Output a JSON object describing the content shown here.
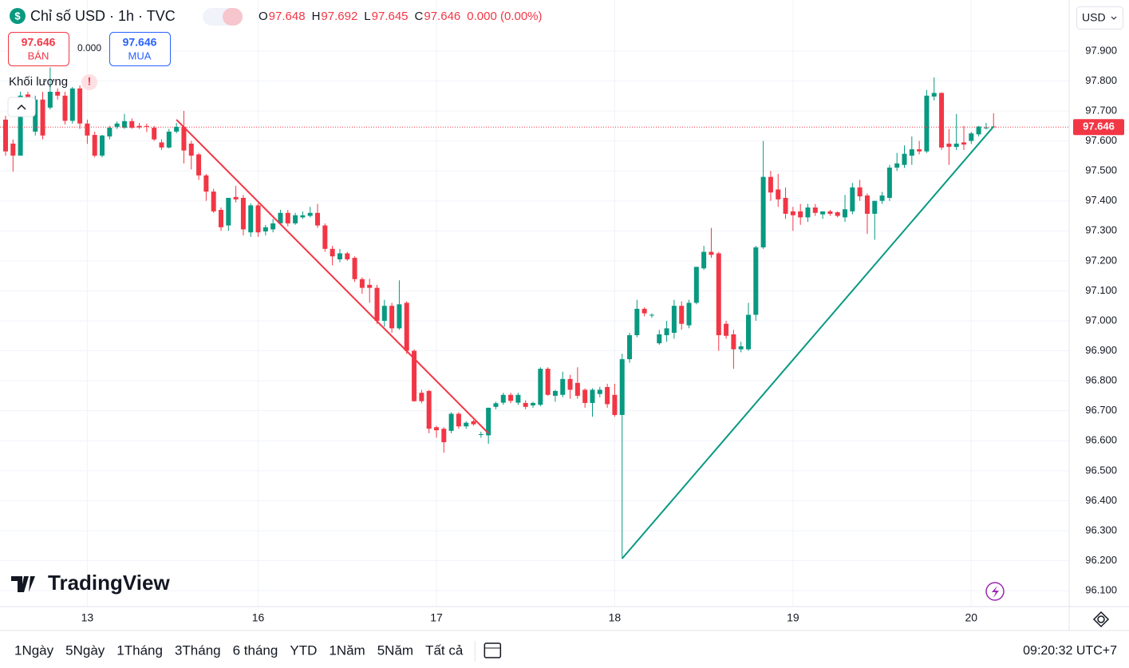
{
  "chart_data": {
    "type": "candlestick",
    "title": "Chỉ số USD · 1h · TVC",
    "legend": [
      {
        "key": "O",
        "value": 97.648
      },
      {
        "key": "H",
        "value": 97.692
      },
      {
        "key": "L",
        "value": 97.645
      },
      {
        "key": "C",
        "value": 97.646
      }
    ],
    "change": "0.000 (0.00%)",
    "sell": {
      "price": 97.646,
      "label": "BÁN"
    },
    "spread": "0.000",
    "buy": {
      "price": 97.646,
      "label": "MUA"
    },
    "volume_label": "Khối lượng",
    "currency": "USD",
    "last_price": 97.646,
    "watermark": "TradingView",
    "up_color": "#089981",
    "down_color": "#f23645",
    "ylim": [
      96.047,
      98.07
    ],
    "yticks": [
      {
        "value": 96.1,
        "label": "96.100"
      },
      {
        "value": 96.2,
        "label": "96.200"
      },
      {
        "value": 96.3,
        "label": "96.300"
      },
      {
        "value": 96.4,
        "label": "96.400"
      },
      {
        "value": 96.5,
        "label": "96.500"
      },
      {
        "value": 96.6,
        "label": "96.600"
      },
      {
        "value": 96.7,
        "label": "96.700"
      },
      {
        "value": 96.8,
        "label": "96.800"
      },
      {
        "value": 96.9,
        "label": "96.900"
      },
      {
        "value": 97.0,
        "label": "97.000"
      },
      {
        "value": 97.1,
        "label": "97.100"
      },
      {
        "value": 97.2,
        "label": "97.200"
      },
      {
        "value": 97.3,
        "label": "97.300"
      },
      {
        "value": 97.4,
        "label": "97.400"
      },
      {
        "value": 97.5,
        "label": "97.500"
      },
      {
        "value": 97.6,
        "label": "97.600"
      },
      {
        "value": 97.7,
        "label": "97.700"
      },
      {
        "value": 97.8,
        "label": "97.800"
      },
      {
        "value": 97.9,
        "label": "97.900"
      }
    ],
    "grid": true,
    "categories": [
      null,
      null,
      null,
      null,
      null,
      null,
      null,
      null,
      null,
      null,
      null,
      "13",
      null,
      null,
      null,
      null,
      null,
      null,
      null,
      null,
      null,
      null,
      null,
      null,
      null,
      null,
      null,
      null,
      null,
      null,
      null,
      null,
      null,
      null,
      "16",
      null,
      null,
      null,
      null,
      null,
      null,
      null,
      null,
      null,
      null,
      null,
      null,
      null,
      null,
      null,
      null,
      null,
      null,
      null,
      null,
      null,
      null,
      null,
      "17",
      null,
      null,
      null,
      null,
      null,
      null,
      null,
      null,
      null,
      null,
      null,
      null,
      null,
      null,
      null,
      null,
      null,
      null,
      null,
      null,
      null,
      null,
      null,
      "18",
      null,
      null,
      null,
      null,
      null,
      null,
      null,
      null,
      null,
      null,
      null,
      null,
      null,
      null,
      null,
      null,
      null,
      null,
      null,
      null,
      null,
      null,
      null,
      "19",
      null,
      null,
      null,
      null,
      null,
      null,
      null,
      null,
      null,
      null,
      null,
      null,
      null,
      null,
      null,
      null,
      null,
      null,
      null,
      null,
      null,
      null,
      null,
      "20",
      null,
      null,
      null
    ],
    "open": [
      97.671,
      97.591,
      97.551,
      97.755,
      97.631,
      97.738,
      97.711,
      97.764,
      97.751,
      97.667,
      97.775,
      97.658,
      97.62,
      97.551,
      97.615,
      97.647,
      97.644,
      97.666,
      97.65,
      97.65,
      97.644,
      97.595,
      97.578,
      97.631,
      97.647,
      97.591,
      97.555,
      97.485,
      97.431,
      97.37,
      97.318,
      97.413,
      97.41,
      97.295,
      97.385,
      97.298,
      97.305,
      97.325,
      97.36,
      97.325,
      97.345,
      97.35,
      97.36,
      97.318,
      97.24,
      97.205,
      97.225,
      97.21,
      97.139,
      97.12,
      97.11,
      97.0,
      97.05,
      96.975,
      97.06,
      96.9,
      96.76,
      96.766,
      96.645,
      96.64,
      96.633,
      96.69,
      96.648,
      96.665,
      96.62,
      96.618,
      96.713,
      96.727,
      96.753,
      96.727,
      96.726,
      96.718,
      96.72,
      96.84,
      96.75,
      96.753,
      96.806,
      96.793,
      96.77,
      96.726,
      96.756,
      96.779,
      96.753,
      96.686,
      96.872,
      96.952,
      97.04,
      97.018,
      96.925,
      96.952,
      96.96,
      97.05,
      96.985,
      97.06,
      97.175,
      97.23,
      97.225,
      96.99,
      96.955,
      96.905,
      96.905,
      97.02,
      97.245,
      97.48,
      97.438,
      97.41,
      97.365,
      97.365,
      97.345,
      97.378,
      97.355,
      97.365,
      97.362,
      97.345,
      97.365,
      97.445,
      97.418,
      97.357,
      97.4,
      97.41,
      97.511,
      97.52,
      97.551,
      97.572,
      97.565,
      97.748,
      97.76,
      97.591,
      97.58,
      97.595,
      97.6,
      97.622,
      97.642,
      97.648
    ],
    "high": [
      97.684,
      97.605,
      97.764,
      97.764,
      97.751,
      97.764,
      97.845,
      97.775,
      97.764,
      97.78,
      97.785,
      97.671,
      97.631,
      97.62,
      97.65,
      97.665,
      97.69,
      97.675,
      97.66,
      97.658,
      97.65,
      97.605,
      97.64,
      97.66,
      97.7,
      97.6,
      97.56,
      97.49,
      97.44,
      97.378,
      97.41,
      97.45,
      97.42,
      97.392,
      97.392,
      97.32,
      97.34,
      97.37,
      97.37,
      97.36,
      97.365,
      97.38,
      97.39,
      97.325,
      97.25,
      97.24,
      97.23,
      97.215,
      97.145,
      97.14,
      97.12,
      97.07,
      97.06,
      97.135,
      97.065,
      96.905,
      96.77,
      96.77,
      96.65,
      96.645,
      96.695,
      96.695,
      96.665,
      96.67,
      96.63,
      96.71,
      96.73,
      96.76,
      96.76,
      96.76,
      96.735,
      96.73,
      96.845,
      96.845,
      96.77,
      96.83,
      96.82,
      96.845,
      96.775,
      96.775,
      96.78,
      96.79,
      96.79,
      96.89,
      96.96,
      97.07,
      97.045,
      97.025,
      96.97,
      97.0,
      97.07,
      97.065,
      97.07,
      97.18,
      97.25,
      97.31,
      97.23,
      97.0,
      96.97,
      96.93,
      97.06,
      97.25,
      97.6,
      97.5,
      97.49,
      97.445,
      97.38,
      97.39,
      97.39,
      97.39,
      97.365,
      97.37,
      97.365,
      97.42,
      97.46,
      97.47,
      97.425,
      97.4,
      97.43,
      97.52,
      97.56,
      97.585,
      97.615,
      97.6,
      97.77,
      97.812,
      97.762,
      97.64,
      97.69,
      97.65,
      97.63,
      97.65,
      97.66,
      97.692
    ],
    "low": [
      97.551,
      97.498,
      97.551,
      97.698,
      97.618,
      97.605,
      97.705,
      97.738,
      97.655,
      97.658,
      97.64,
      97.59,
      97.545,
      97.545,
      97.605,
      97.64,
      97.64,
      97.64,
      97.64,
      97.63,
      97.6,
      97.57,
      97.575,
      97.625,
      97.525,
      97.505,
      97.47,
      97.4,
      97.36,
      97.3,
      97.3,
      97.395,
      97.285,
      97.28,
      97.28,
      97.285,
      97.295,
      97.32,
      97.315,
      97.32,
      97.34,
      97.345,
      97.31,
      97.23,
      97.185,
      97.195,
      97.2,
      97.13,
      97.09,
      97.06,
      96.99,
      96.98,
      96.96,
      96.97,
      96.89,
      96.73,
      96.725,
      96.625,
      96.61,
      96.56,
      96.625,
      96.64,
      96.64,
      96.65,
      96.61,
      96.59,
      96.705,
      96.72,
      96.725,
      96.72,
      96.705,
      96.71,
      96.715,
      96.75,
      96.73,
      96.745,
      96.74,
      96.74,
      96.71,
      96.68,
      96.745,
      96.71,
      96.68,
      96.207,
      96.86,
      96.945,
      97.015,
      97.01,
      96.92,
      96.93,
      96.94,
      96.97,
      96.975,
      97.055,
      97.17,
      97.21,
      96.9,
      96.94,
      96.84,
      96.895,
      96.9,
      97.0,
      97.24,
      97.4,
      97.38,
      97.34,
      97.3,
      97.32,
      97.33,
      97.35,
      97.34,
      97.35,
      97.345,
      97.33,
      97.355,
      97.4,
      97.29,
      97.27,
      97.39,
      97.4,
      97.5,
      97.51,
      97.52,
      97.555,
      97.56,
      97.735,
      97.57,
      97.52,
      97.57,
      97.57,
      97.59,
      97.615,
      97.638,
      97.645
    ],
    "close": [
      97.565,
      97.551,
      97.751,
      97.711,
      97.738,
      97.618,
      97.764,
      97.751,
      97.667,
      97.775,
      97.658,
      97.618,
      97.551,
      97.618,
      97.644,
      97.658,
      97.666,
      97.644,
      97.645,
      97.647,
      97.605,
      97.578,
      97.631,
      97.647,
      97.568,
      97.551,
      97.485,
      97.431,
      97.365,
      97.312,
      97.41,
      97.405,
      97.305,
      97.385,
      97.295,
      97.312,
      97.325,
      97.36,
      97.325,
      97.352,
      97.352,
      97.36,
      97.318,
      97.24,
      97.215,
      97.225,
      97.205,
      97.139,
      97.11,
      97.11,
      97.0,
      97.05,
      96.975,
      97.055,
      96.9,
      96.732,
      96.732,
      96.64,
      96.635,
      96.595,
      96.69,
      96.648,
      96.66,
      96.655,
      96.622,
      96.71,
      96.725,
      96.753,
      96.733,
      96.753,
      96.713,
      96.726,
      96.84,
      96.753,
      96.766,
      96.806,
      96.77,
      96.75,
      96.726,
      96.77,
      96.77,
      96.722,
      96.686,
      96.872,
      96.952,
      97.04,
      97.025,
      97.02,
      96.955,
      96.975,
      97.05,
      96.99,
      97.06,
      97.18,
      97.23,
      97.22,
      96.952,
      96.95,
      96.905,
      96.915,
      97.02,
      97.245,
      97.48,
      97.428,
      97.405,
      97.357,
      97.352,
      97.345,
      97.378,
      97.36,
      97.365,
      97.357,
      97.35,
      97.372,
      97.445,
      97.415,
      97.357,
      97.4,
      97.418,
      97.511,
      97.525,
      97.557,
      97.572,
      97.565,
      97.751,
      97.76,
      97.578,
      97.58,
      97.591,
      97.588,
      97.625,
      97.648,
      97.645,
      97.646
    ],
    "drawings": [
      {
        "color": "#f23645",
        "from": {
          "index": 23,
          "price": 97.671
        },
        "to": {
          "index": 65,
          "price": 96.625
        }
      },
      {
        "color": "#089981",
        "from": {
          "index": 83,
          "price": 96.207
        },
        "to": {
          "index": 133,
          "price": 97.648
        }
      }
    ]
  },
  "toolbar": {
    "ranges": [
      "1Ngày",
      "5Ngày",
      "1Tháng",
      "3Tháng",
      "6 tháng",
      "YTD",
      "1Năm",
      "5Năm",
      "Tất cả"
    ],
    "clock": "09:20:32 UTC+7"
  }
}
